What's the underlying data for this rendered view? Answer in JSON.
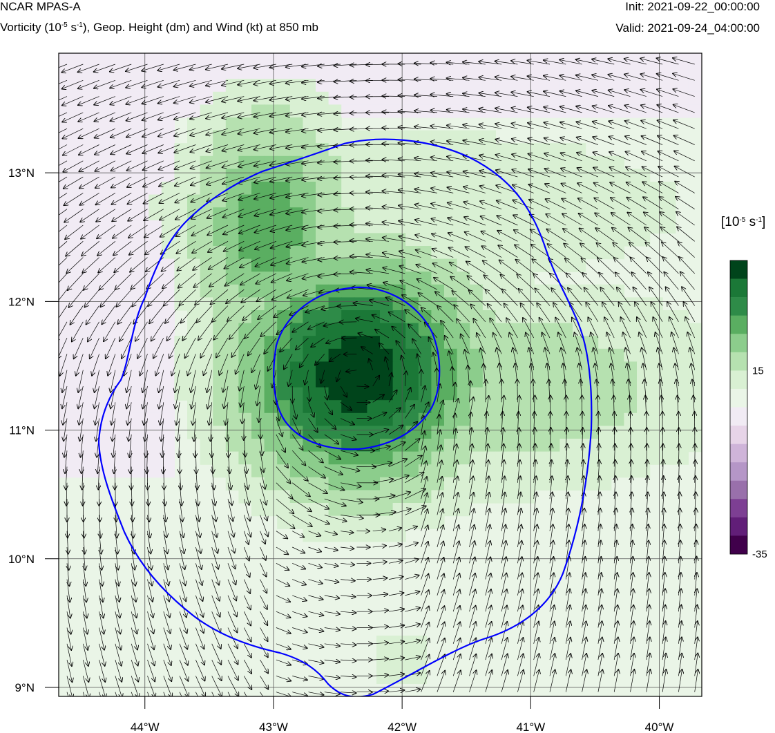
{
  "header": {
    "model": "NCAR MPAS-A",
    "subtitle_pre": "Vorticity (10",
    "subtitle_exp1": "-5",
    "subtitle_mid": " s",
    "subtitle_exp2": "-1",
    "subtitle_post": "), Geop. Height (dm) and Wind (kt) at 850 mb",
    "init": "Init: 2021-09-22_00:00:00",
    "valid": "Valid: 2021-09-24_04:00:00"
  },
  "map": {
    "lon_range": [
      -44.67,
      -39.67
    ],
    "lat_range": [
      8.93,
      13.93
    ],
    "lon_ticks": [
      {
        "value": -44,
        "label": "44°W"
      },
      {
        "value": -43,
        "label": "43°W"
      },
      {
        "value": -42,
        "label": "42°W"
      },
      {
        "value": -41,
        "label": "41°W"
      },
      {
        "value": -40,
        "label": "40°W"
      }
    ],
    "lat_ticks": [
      {
        "value": 9,
        "label": "9°N"
      },
      {
        "value": 10,
        "label": "10°N"
      },
      {
        "value": 11,
        "label": "11°N"
      },
      {
        "value": 12,
        "label": "12°N"
      },
      {
        "value": 13,
        "label": "13°N"
      }
    ],
    "vortex_center": {
      "lon": -42.35,
      "lat": 11.45
    },
    "grid": true
  },
  "colorbar": {
    "units_pre": "[10",
    "units_exp1": "-5",
    "units_mid": " s",
    "units_exp2": "-1",
    "units_post": "]",
    "colors": [
      "#00441b",
      "#1b7837",
      "#2e8b48",
      "#5aae61",
      "#8ccd8c",
      "#b6e1b0",
      "#d9f0d3",
      "#eaf5e7",
      "#f1ebf4",
      "#e7d4e8",
      "#cfb4d9",
      "#b596c7",
      "#9970ab",
      "#7d3f93",
      "#611e78",
      "#40004b"
    ],
    "labels": [
      {
        "index": 5,
        "text": "15"
      },
      {
        "index": 15,
        "text": "-35"
      }
    ]
  },
  "colors": {
    "contour": "#0000ff",
    "wind_vector": "#000000",
    "grid_line": "#555555"
  }
}
